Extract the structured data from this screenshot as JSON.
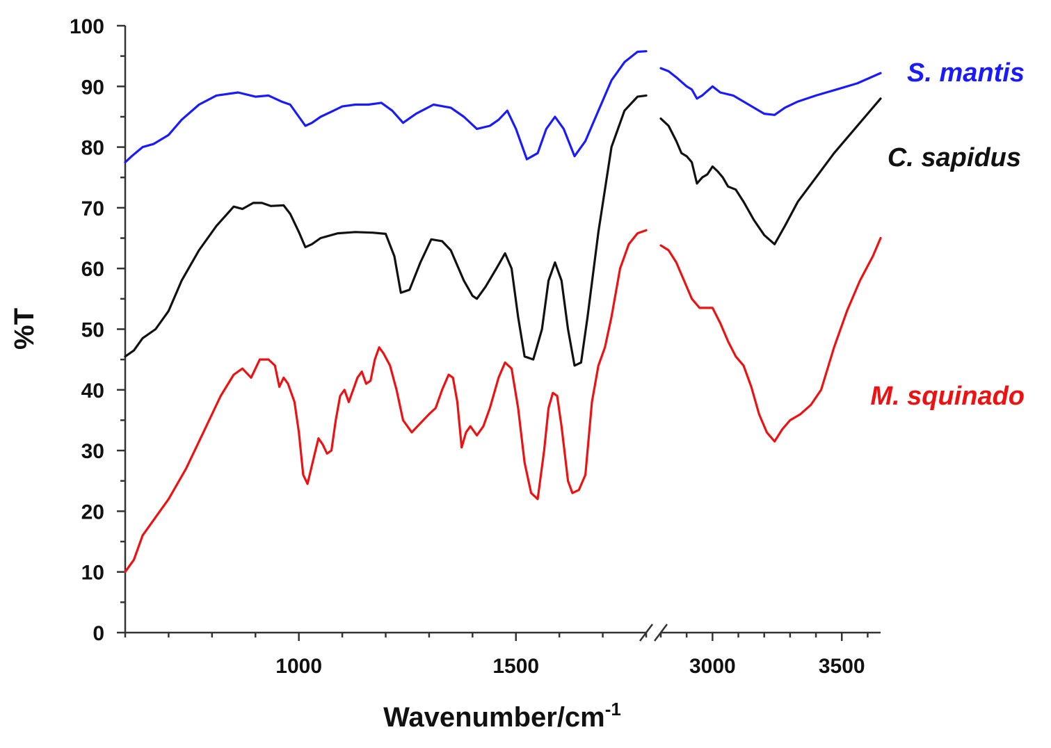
{
  "chart_data": {
    "type": "line",
    "title": "",
    "xlabel": "Wavenumber/cm",
    "xlabel_sup": "-1",
    "ylabel": "%T",
    "ylim": [
      0,
      100
    ],
    "yticks": [
      0,
      10,
      20,
      30,
      40,
      50,
      60,
      70,
      80,
      90,
      100
    ],
    "axis_break": true,
    "x_segments": [
      {
        "xlim": [
          600,
          1800
        ],
        "ticks": [
          1000,
          1500
        ],
        "tick_labels": [
          "1000",
          "1500"
        ],
        "minor_step": 100
      },
      {
        "xlim": [
          2800,
          3650
        ],
        "ticks": [
          3000,
          3500
        ],
        "tick_labels": [
          "3000",
          "3500"
        ],
        "minor_step": 100
      }
    ],
    "grid": false,
    "legend": "inline-right",
    "series": [
      {
        "name": "S. mantis",
        "color": "#1a1aff",
        "segments": [
          [
            [
              600,
              77.5
            ],
            [
              615,
              78.5
            ],
            [
              640,
              80
            ],
            [
              665,
              80.5
            ],
            [
              700,
              82
            ],
            [
              730,
              84.5
            ],
            [
              770,
              87
            ],
            [
              810,
              88.5
            ],
            [
              860,
              89
            ],
            [
              900,
              88.3
            ],
            [
              930,
              88.5
            ],
            [
              960,
              87.5
            ],
            [
              980,
              87
            ],
            [
              1000,
              85
            ],
            [
              1015,
              83.5
            ],
            [
              1030,
              84
            ],
            [
              1050,
              85
            ],
            [
              1080,
              86
            ],
            [
              1100,
              86.7
            ],
            [
              1130,
              87
            ],
            [
              1160,
              87
            ],
            [
              1190,
              87.3
            ],
            [
              1215,
              86
            ],
            [
              1240,
              84
            ],
            [
              1270,
              85.5
            ],
            [
              1310,
              87
            ],
            [
              1350,
              86.5
            ],
            [
              1380,
              85
            ],
            [
              1410,
              83
            ],
            [
              1440,
              83.5
            ],
            [
              1460,
              84.5
            ],
            [
              1480,
              86
            ],
            [
              1500,
              83
            ],
            [
              1525,
              78
            ],
            [
              1550,
              79
            ],
            [
              1570,
              83
            ],
            [
              1590,
              85
            ],
            [
              1610,
              83
            ],
            [
              1635,
              78.5
            ],
            [
              1660,
              81
            ],
            [
              1690,
              86
            ],
            [
              1720,
              91
            ],
            [
              1750,
              94
            ],
            [
              1780,
              95.7
            ],
            [
              1800,
              95.8
            ]
          ],
          [
            [
              2800,
              93
            ],
            [
              2830,
              92.5
            ],
            [
              2860,
              91.5
            ],
            [
              2900,
              90
            ],
            [
              2920,
              89.5
            ],
            [
              2940,
              88
            ],
            [
              2960,
              88.5
            ],
            [
              3000,
              90
            ],
            [
              3030,
              89
            ],
            [
              3080,
              88.5
            ],
            [
              3120,
              87.5
            ],
            [
              3160,
              86.5
            ],
            [
              3200,
              85.5
            ],
            [
              3240,
              85.3
            ],
            [
              3280,
              86.5
            ],
            [
              3330,
              87.5
            ],
            [
              3400,
              88.5
            ],
            [
              3480,
              89.5
            ],
            [
              3560,
              90.5
            ],
            [
              3650,
              92.2
            ]
          ]
        ]
      },
      {
        "name": "C. sapidus",
        "color": "#111111",
        "segments": [
          [
            [
              600,
              45.5
            ],
            [
              620,
              46.5
            ],
            [
              640,
              48.5
            ],
            [
              670,
              50
            ],
            [
              700,
              53
            ],
            [
              730,
              58
            ],
            [
              770,
              63
            ],
            [
              810,
              67
            ],
            [
              850,
              70.2
            ],
            [
              870,
              69.8
            ],
            [
              895,
              70.8
            ],
            [
              915,
              70.8
            ],
            [
              935,
              70.3
            ],
            [
              965,
              70.4
            ],
            [
              980,
              69
            ],
            [
              1000,
              66
            ],
            [
              1015,
              63.5
            ],
            [
              1030,
              64
            ],
            [
              1050,
              65
            ],
            [
              1090,
              65.8
            ],
            [
              1130,
              66
            ],
            [
              1170,
              65.9
            ],
            [
              1200,
              65.7
            ],
            [
              1220,
              62
            ],
            [
              1235,
              56
            ],
            [
              1255,
              56.5
            ],
            [
              1280,
              61
            ],
            [
              1305,
              64.8
            ],
            [
              1330,
              64.5
            ],
            [
              1350,
              63
            ],
            [
              1380,
              58
            ],
            [
              1400,
              55.5
            ],
            [
              1410,
              55
            ],
            [
              1430,
              57
            ],
            [
              1455,
              60
            ],
            [
              1475,
              62.5
            ],
            [
              1490,
              60
            ],
            [
              1505,
              52
            ],
            [
              1520,
              45.5
            ],
            [
              1540,
              45
            ],
            [
              1560,
              50
            ],
            [
              1575,
              58
            ],
            [
              1590,
              61
            ],
            [
              1605,
              58
            ],
            [
              1620,
              50
            ],
            [
              1635,
              44
            ],
            [
              1650,
              44.5
            ],
            [
              1665,
              52
            ],
            [
              1690,
              66
            ],
            [
              1720,
              80
            ],
            [
              1750,
              86
            ],
            [
              1780,
              88.3
            ],
            [
              1800,
              88.5
            ]
          ],
          [
            [
              2800,
              84.7
            ],
            [
              2830,
              83.5
            ],
            [
              2860,
              81
            ],
            [
              2880,
              79
            ],
            [
              2900,
              78.5
            ],
            [
              2920,
              77.5
            ],
            [
              2940,
              74
            ],
            [
              2960,
              75
            ],
            [
              2980,
              75.5
            ],
            [
              3000,
              76.8
            ],
            [
              3020,
              76
            ],
            [
              3040,
              75
            ],
            [
              3060,
              73.5
            ],
            [
              3090,
              73
            ],
            [
              3120,
              71
            ],
            [
              3160,
              68
            ],
            [
              3200,
              65.5
            ],
            [
              3240,
              64
            ],
            [
              3280,
              67
            ],
            [
              3330,
              71
            ],
            [
              3400,
              75
            ],
            [
              3470,
              79
            ],
            [
              3540,
              82.5
            ],
            [
              3600,
              85.5
            ],
            [
              3650,
              88
            ]
          ]
        ]
      },
      {
        "name": "M. squinado",
        "color": "#ee1111",
        "segments": [
          [
            [
              600,
              10
            ],
            [
              620,
              12
            ],
            [
              640,
              16
            ],
            [
              670,
              19
            ],
            [
              700,
              22
            ],
            [
              740,
              27
            ],
            [
              780,
              33
            ],
            [
              820,
              39
            ],
            [
              850,
              42.5
            ],
            [
              870,
              43.5
            ],
            [
              890,
              42
            ],
            [
              910,
              45
            ],
            [
              930,
              45
            ],
            [
              945,
              44
            ],
            [
              955,
              40.5
            ],
            [
              965,
              42
            ],
            [
              975,
              41
            ],
            [
              990,
              38
            ],
            [
              1000,
              33
            ],
            [
              1010,
              26
            ],
            [
              1020,
              24.5
            ],
            [
              1035,
              29
            ],
            [
              1045,
              32
            ],
            [
              1055,
              31
            ],
            [
              1065,
              29.5
            ],
            [
              1075,
              30
            ],
            [
              1085,
              35
            ],
            [
              1095,
              39
            ],
            [
              1105,
              40
            ],
            [
              1115,
              38
            ],
            [
              1125,
              40
            ],
            [
              1135,
              42
            ],
            [
              1145,
              43
            ],
            [
              1155,
              41
            ],
            [
              1165,
              41.5
            ],
            [
              1175,
              45
            ],
            [
              1185,
              47
            ],
            [
              1195,
              46
            ],
            [
              1210,
              44
            ],
            [
              1225,
              40
            ],
            [
              1240,
              35
            ],
            [
              1260,
              33
            ],
            [
              1280,
              34.5
            ],
            [
              1300,
              36
            ],
            [
              1315,
              37
            ],
            [
              1330,
              40
            ],
            [
              1345,
              42.5
            ],
            [
              1355,
              42
            ],
            [
              1365,
              38
            ],
            [
              1375,
              30.5
            ],
            [
              1385,
              33
            ],
            [
              1395,
              34
            ],
            [
              1410,
              32.5
            ],
            [
              1425,
              34
            ],
            [
              1440,
              37
            ],
            [
              1460,
              42
            ],
            [
              1475,
              44.5
            ],
            [
              1490,
              43.5
            ],
            [
              1505,
              37
            ],
            [
              1520,
              28
            ],
            [
              1535,
              23
            ],
            [
              1550,
              22
            ],
            [
              1565,
              30
            ],
            [
              1575,
              37
            ],
            [
              1585,
              39.5
            ],
            [
              1595,
              39
            ],
            [
              1605,
              34
            ],
            [
              1620,
              25
            ],
            [
              1630,
              23
            ],
            [
              1645,
              23.5
            ],
            [
              1660,
              26
            ],
            [
              1675,
              38
            ],
            [
              1690,
              44
            ],
            [
              1705,
              47
            ],
            [
              1720,
              52
            ],
            [
              1740,
              60
            ],
            [
              1760,
              64
            ],
            [
              1780,
              65.8
            ],
            [
              1800,
              66.3
            ]
          ],
          [
            [
              2800,
              63.8
            ],
            [
              2830,
              63
            ],
            [
              2860,
              61
            ],
            [
              2880,
              59
            ],
            [
              2900,
              57
            ],
            [
              2920,
              55
            ],
            [
              2950,
              53.5
            ],
            [
              2980,
              53.5
            ],
            [
              3000,
              53.5
            ],
            [
              3030,
              51
            ],
            [
              3060,
              48
            ],
            [
              3090,
              45.5
            ],
            [
              3120,
              44
            ],
            [
              3150,
              40.5
            ],
            [
              3180,
              36
            ],
            [
              3210,
              33
            ],
            [
              3240,
              31.5
            ],
            [
              3270,
              33.5
            ],
            [
              3300,
              35
            ],
            [
              3340,
              36
            ],
            [
              3380,
              37.5
            ],
            [
              3420,
              40
            ],
            [
              3470,
              47
            ],
            [
              3520,
              53
            ],
            [
              3570,
              58
            ],
            [
              3620,
              62
            ],
            [
              3650,
              65
            ]
          ]
        ]
      }
    ]
  }
}
